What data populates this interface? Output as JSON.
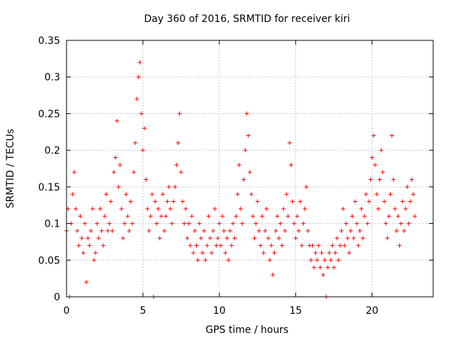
{
  "chart_data": {
    "type": "scatter",
    "title": "Day 360 of 2016, SRMTID for receiver kiri",
    "xlabel": "GPS time / hours",
    "ylabel": "SRMTID / TECUs",
    "xlim": [
      0,
      24
    ],
    "ylim": [
      0,
      0.35
    ],
    "x_ticks": [
      0,
      5,
      10,
      15,
      20
    ],
    "x_tick_labels": [
      "0",
      "5",
      "10",
      "15",
      "20"
    ],
    "y_ticks": [
      0,
      0.05,
      0.1,
      0.15,
      0.2,
      0.25,
      0.3,
      0.35
    ],
    "y_tick_labels": [
      "0",
      "0.05",
      "0.1",
      "0.15",
      "0.2",
      "0.25",
      "0.3",
      "0.35"
    ],
    "grid": true,
    "marker": "plus",
    "color": "#ff0000",
    "series": [
      {
        "points": [
          [
            0.0,
            0.09
          ],
          [
            0.1,
            0.12
          ],
          [
            0.2,
            0.0
          ],
          [
            0.3,
            0.1
          ],
          [
            0.4,
            0.14
          ],
          [
            0.5,
            0.17
          ],
          [
            0.6,
            0.12
          ],
          [
            0.7,
            0.09
          ],
          [
            0.8,
            0.07
          ],
          [
            0.9,
            0.11
          ],
          [
            1.0,
            0.08
          ],
          [
            1.1,
            0.06
          ],
          [
            1.2,
            0.1
          ],
          [
            1.3,
            0.02
          ],
          [
            1.4,
            0.08
          ],
          [
            1.5,
            0.07
          ],
          [
            1.6,
            0.09
          ],
          [
            1.7,
            0.12
          ],
          [
            1.8,
            0.05
          ],
          [
            1.9,
            0.06
          ],
          [
            2.0,
            0.1
          ],
          [
            2.1,
            0.08
          ],
          [
            2.2,
            0.12
          ],
          [
            2.3,
            0.09
          ],
          [
            2.4,
            0.07
          ],
          [
            2.5,
            0.11
          ],
          [
            2.6,
            0.14
          ],
          [
            2.7,
            0.09
          ],
          [
            2.8,
            0.1
          ],
          [
            2.9,
            0.13
          ],
          [
            3.0,
            0.09
          ],
          [
            3.1,
            0.17
          ],
          [
            3.2,
            0.19
          ],
          [
            3.3,
            0.24
          ],
          [
            3.4,
            0.15
          ],
          [
            3.5,
            0.18
          ],
          [
            3.6,
            0.12
          ],
          [
            3.7,
            0.08
          ],
          [
            3.8,
            0.1
          ],
          [
            3.9,
            0.14
          ],
          [
            4.0,
            0.11
          ],
          [
            4.1,
            0.09
          ],
          [
            4.2,
            0.13
          ],
          [
            4.3,
            0.1
          ],
          [
            4.4,
            0.17
          ],
          [
            4.5,
            0.21
          ],
          [
            4.6,
            0.27
          ],
          [
            4.7,
            0.3
          ],
          [
            4.8,
            0.32
          ],
          [
            4.9,
            0.25
          ],
          [
            5.0,
            0.2
          ],
          [
            5.1,
            0.23
          ],
          [
            5.2,
            0.16
          ],
          [
            5.3,
            0.12
          ],
          [
            5.4,
            0.09
          ],
          [
            5.5,
            0.11
          ],
          [
            5.6,
            0.14
          ],
          [
            5.7,
            0.0
          ],
          [
            5.8,
            0.13
          ],
          [
            5.9,
            0.1
          ],
          [
            6.0,
            0.12
          ],
          [
            6.1,
            0.08
          ],
          [
            6.2,
            0.11
          ],
          [
            6.3,
            0.14
          ],
          [
            6.4,
            0.09
          ],
          [
            6.5,
            0.11
          ],
          [
            6.6,
            0.13
          ],
          [
            6.7,
            0.15
          ],
          [
            6.8,
            0.12
          ],
          [
            6.9,
            0.1
          ],
          [
            7.0,
            0.13
          ],
          [
            7.1,
            0.15
          ],
          [
            7.2,
            0.18
          ],
          [
            7.3,
            0.21
          ],
          [
            7.4,
            0.25
          ],
          [
            7.5,
            0.17
          ],
          [
            7.6,
            0.13
          ],
          [
            7.7,
            0.1
          ],
          [
            7.8,
            0.12
          ],
          [
            7.9,
            0.08
          ],
          [
            8.0,
            0.1
          ],
          [
            8.1,
            0.07
          ],
          [
            8.2,
            0.11
          ],
          [
            8.3,
            0.06
          ],
          [
            8.4,
            0.09
          ],
          [
            8.5,
            0.07
          ],
          [
            8.6,
            0.05
          ],
          [
            8.7,
            0.1
          ],
          [
            8.8,
            0.08
          ],
          [
            8.9,
            0.06
          ],
          [
            9.0,
            0.09
          ],
          [
            9.1,
            0.05
          ],
          [
            9.2,
            0.07
          ],
          [
            9.3,
            0.11
          ],
          [
            9.4,
            0.08
          ],
          [
            9.5,
            0.06
          ],
          [
            9.6,
            0.09
          ],
          [
            9.7,
            0.12
          ],
          [
            9.8,
            0.07
          ],
          [
            9.9,
            0.08
          ],
          [
            10.0,
            0.1
          ],
          [
            10.1,
            0.07
          ],
          [
            10.2,
            0.11
          ],
          [
            10.3,
            0.09
          ],
          [
            10.4,
            0.06
          ],
          [
            10.5,
            0.08
          ],
          [
            10.6,
            0.05
          ],
          [
            10.7,
            0.09
          ],
          [
            10.8,
            0.07
          ],
          [
            10.9,
            0.1
          ],
          [
            11.0,
            0.08
          ],
          [
            11.1,
            0.11
          ],
          [
            11.2,
            0.14
          ],
          [
            11.3,
            0.18
          ],
          [
            11.4,
            0.12
          ],
          [
            11.5,
            0.1
          ],
          [
            11.6,
            0.16
          ],
          [
            11.7,
            0.2
          ],
          [
            11.8,
            0.25
          ],
          [
            11.9,
            0.22
          ],
          [
            12.0,
            0.17
          ],
          [
            12.1,
            0.14
          ],
          [
            12.2,
            0.11
          ],
          [
            12.3,
            0.08
          ],
          [
            12.4,
            0.1
          ],
          [
            12.5,
            0.13
          ],
          [
            12.6,
            0.09
          ],
          [
            12.7,
            0.07
          ],
          [
            12.8,
            0.11
          ],
          [
            12.9,
            0.06
          ],
          [
            13.0,
            0.09
          ],
          [
            13.1,
            0.12
          ],
          [
            13.2,
            0.08
          ],
          [
            13.3,
            0.05
          ],
          [
            13.4,
            0.07
          ],
          [
            13.5,
            0.03
          ],
          [
            13.6,
            0.06
          ],
          [
            13.7,
            0.09
          ],
          [
            13.8,
            0.11
          ],
          [
            13.9,
            0.08
          ],
          [
            14.0,
            0.1
          ],
          [
            14.1,
            0.07
          ],
          [
            14.2,
            0.12
          ],
          [
            14.3,
            0.09
          ],
          [
            14.4,
            0.14
          ],
          [
            14.5,
            0.11
          ],
          [
            14.6,
            0.21
          ],
          [
            14.7,
            0.18
          ],
          [
            14.8,
            0.13
          ],
          [
            14.9,
            0.1
          ],
          [
            15.0,
            0.08
          ],
          [
            15.1,
            0.11
          ],
          [
            15.2,
            0.09
          ],
          [
            15.3,
            0.13
          ],
          [
            15.4,
            0.07
          ],
          [
            15.5,
            0.1
          ],
          [
            15.6,
            0.12
          ],
          [
            15.7,
            0.15
          ],
          [
            15.8,
            0.09
          ],
          [
            15.9,
            0.07
          ],
          [
            16.0,
            0.05
          ],
          [
            16.1,
            0.07
          ],
          [
            16.2,
            0.04
          ],
          [
            16.3,
            0.06
          ],
          [
            16.4,
            0.05
          ],
          [
            16.5,
            0.07
          ],
          [
            16.6,
            0.04
          ],
          [
            16.7,
            0.06
          ],
          [
            16.8,
            0.03
          ],
          [
            16.9,
            0.05
          ],
          [
            17.0,
            0.0
          ],
          [
            17.1,
            0.04
          ],
          [
            17.2,
            0.06
          ],
          [
            17.3,
            0.05
          ],
          [
            17.4,
            0.07
          ],
          [
            17.5,
            0.04
          ],
          [
            17.6,
            0.06
          ],
          [
            17.7,
            0.08
          ],
          [
            17.8,
            0.05
          ],
          [
            17.9,
            0.07
          ],
          [
            18.0,
            0.09
          ],
          [
            18.1,
            0.12
          ],
          [
            18.2,
            0.07
          ],
          [
            18.3,
            0.1
          ],
          [
            18.4,
            0.08
          ],
          [
            18.5,
            0.06
          ],
          [
            18.6,
            0.09
          ],
          [
            18.7,
            0.11
          ],
          [
            18.8,
            0.08
          ],
          [
            18.9,
            0.13
          ],
          [
            19.0,
            0.1
          ],
          [
            19.1,
            0.07
          ],
          [
            19.2,
            0.09
          ],
          [
            19.3,
            0.12
          ],
          [
            19.4,
            0.08
          ],
          [
            19.5,
            0.11
          ],
          [
            19.6,
            0.14
          ],
          [
            19.7,
            0.1
          ],
          [
            19.8,
            0.13
          ],
          [
            19.9,
            0.16
          ],
          [
            20.0,
            0.19
          ],
          [
            20.1,
            0.22
          ],
          [
            20.2,
            0.18
          ],
          [
            20.3,
            0.14
          ],
          [
            20.4,
            0.12
          ],
          [
            20.5,
            0.16
          ],
          [
            20.6,
            0.2
          ],
          [
            20.7,
            0.17
          ],
          [
            20.8,
            0.13
          ],
          [
            20.9,
            0.1
          ],
          [
            21.0,
            0.08
          ],
          [
            21.1,
            0.11
          ],
          [
            21.2,
            0.14
          ],
          [
            21.3,
            0.22
          ],
          [
            21.4,
            0.16
          ],
          [
            21.5,
            0.12
          ],
          [
            21.6,
            0.09
          ],
          [
            21.7,
            0.11
          ],
          [
            21.8,
            0.07
          ],
          [
            21.9,
            0.1
          ],
          [
            22.0,
            0.13
          ],
          [
            22.1,
            0.09
          ],
          [
            22.2,
            0.12
          ],
          [
            22.3,
            0.15
          ],
          [
            22.4,
            0.1
          ],
          [
            22.5,
            0.13
          ],
          [
            22.6,
            0.16
          ],
          [
            22.7,
            0.14
          ],
          [
            22.8,
            0.11
          ]
        ]
      }
    ]
  }
}
